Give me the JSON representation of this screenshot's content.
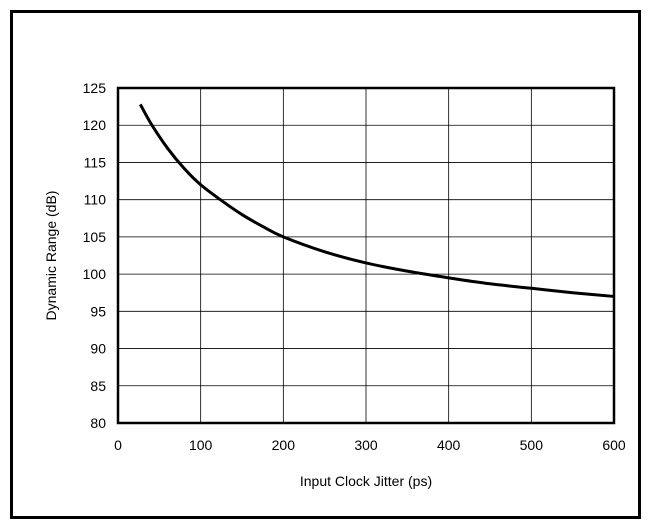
{
  "chart_data": {
    "type": "line",
    "title": "",
    "xlabel": "Input Clock Jitter (ps)",
    "ylabel": "Dynamic Range (dB)",
    "xlim": [
      0,
      600
    ],
    "ylim": [
      80,
      125
    ],
    "x_ticks": [
      0,
      100,
      200,
      300,
      400,
      500,
      600
    ],
    "x_tick_labels": [
      "0",
      "100",
      "200",
      "300",
      "400",
      "500",
      "600"
    ],
    "y_ticks": [
      80,
      85,
      90,
      95,
      100,
      105,
      110,
      115,
      120,
      125
    ],
    "y_tick_labels": [
      "80",
      "85",
      "90",
      "95",
      "100",
      "105",
      "110",
      "115",
      "120",
      "125"
    ],
    "grid": true,
    "series": [
      {
        "color": "#000000",
        "x": [
          27,
          40,
          60,
          80,
          100,
          125,
          150,
          175,
          200,
          250,
          300,
          350,
          400,
          450,
          500,
          550,
          600
        ],
        "y": [
          122.8,
          120.2,
          116.9,
          114.2,
          112.0,
          109.9,
          108.0,
          106.4,
          105.0,
          103.0,
          101.5,
          100.4,
          99.5,
          98.7,
          98.1,
          97.5,
          97.0
        ]
      }
    ]
  }
}
